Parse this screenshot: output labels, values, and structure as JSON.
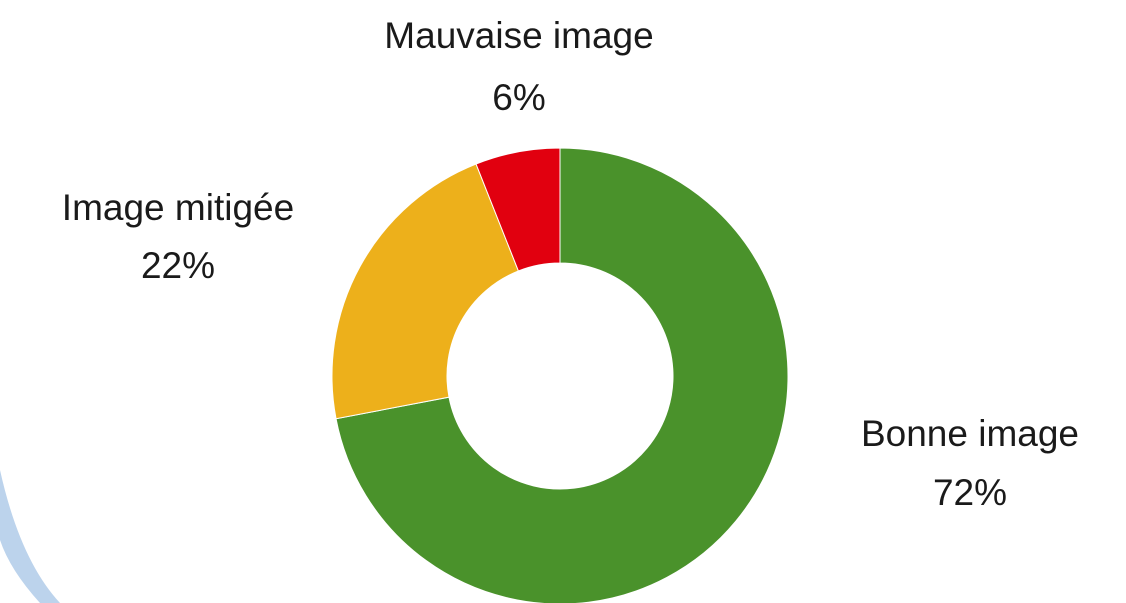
{
  "chart_data": {
    "type": "donut",
    "categories": [
      "Bonne image",
      "Image mitigée",
      "Mauvaise image"
    ],
    "values": [
      72,
      22,
      6
    ],
    "value_labels": [
      "72%",
      "22%",
      "6%"
    ],
    "colors": [
      "#4a922b",
      "#edb01b",
      "#e1000f"
    ]
  }
}
